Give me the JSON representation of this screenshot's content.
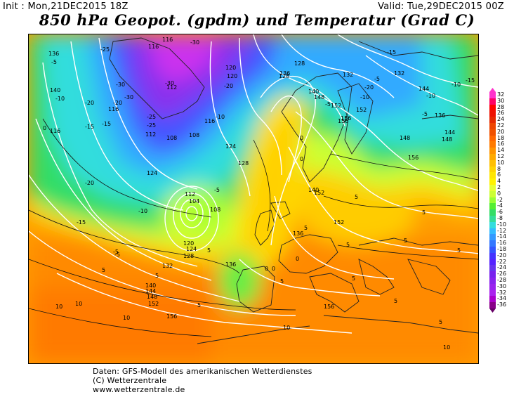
{
  "header": {
    "init": "Init : Mon,21DEC2015 18Z",
    "valid": "Valid: Tue,29DEC2015 00Z",
    "title": "850 hPa Geopot. (gpdm) und Temperatur (Grad C)"
  },
  "credits": {
    "line1": "Daten: GFS-Modell des amerikanischen Wetterdienstes",
    "line2": "(C) Wetterzentrale",
    "line3": "www.wetterzentrale.de"
  },
  "legend": {
    "labels": [
      "32",
      "30",
      "28",
      "26",
      "24",
      "22",
      "20",
      "18",
      "16",
      "14",
      "12",
      "10",
      "8",
      "6",
      "4",
      "2",
      "0",
      "-2",
      "-4",
      "-6",
      "-8",
      "-10",
      "-12",
      "-14",
      "-16",
      "-18",
      "-20",
      "-22",
      "-24",
      "-26",
      "-28",
      "-30",
      "-32",
      "-34",
      "-36"
    ],
    "colors": [
      "#ff33cc",
      "#ff0066",
      "#ff0000",
      "#ee1100",
      "#e62800",
      "#ee4400",
      "#f05000",
      "#ff6600",
      "#ff7a00",
      "#ff9400",
      "#ffaa00",
      "#ffbf00",
      "#ffd400",
      "#ffe600",
      "#fff200",
      "#e6ff33",
      "#ccff33",
      "#99ff33",
      "#55ee33",
      "#33dd66",
      "#33dd99",
      "#33dddd",
      "#33bbff",
      "#3399ff",
      "#3377ff",
      "#3355ff",
      "#4433ff",
      "#5522ff",
      "#6633ee",
      "#7722ee",
      "#8822ee",
      "#9922ee",
      "#aa22ee",
      "#aa00cc",
      "#880088",
      "#660066"
    ]
  },
  "geopotential_labels": [
    "136",
    "116",
    "120",
    "112",
    "128",
    "108",
    "116",
    "112",
    "108",
    "104",
    "112",
    "120",
    "124",
    "128",
    "132",
    "136",
    "140",
    "144",
    "148",
    "152",
    "156",
    "124",
    "128",
    "132",
    "136",
    "140",
    "144",
    "148",
    "152",
    "156",
    "116",
    "120",
    "140",
    "136",
    "152",
    "152",
    "156",
    "148",
    "156",
    "136",
    "132",
    "128",
    "124",
    "116",
    "108",
    "116",
    "140",
    "144",
    "148",
    "152",
    "156"
  ],
  "temperature_labels": [
    "-25",
    "-30",
    "-25",
    "-30",
    "-20",
    "-30",
    "-25",
    "-20",
    "-15",
    "-10",
    "-5",
    "0",
    "5",
    "5",
    "0",
    "-5",
    "-10",
    "-15",
    "-20",
    "-5",
    "-10",
    "-15",
    "-20",
    "-30",
    "-5",
    "0",
    "5",
    "10",
    "10",
    "5",
    "10",
    "5",
    "0",
    "-5",
    "-10",
    "-15",
    "-10",
    "-5",
    "0",
    "5",
    "5",
    "5",
    "5",
    "5",
    "5",
    "5",
    "10",
    "10",
    "5",
    "5",
    "0",
    "-5",
    "-10",
    "-15",
    "-20"
  ]
}
